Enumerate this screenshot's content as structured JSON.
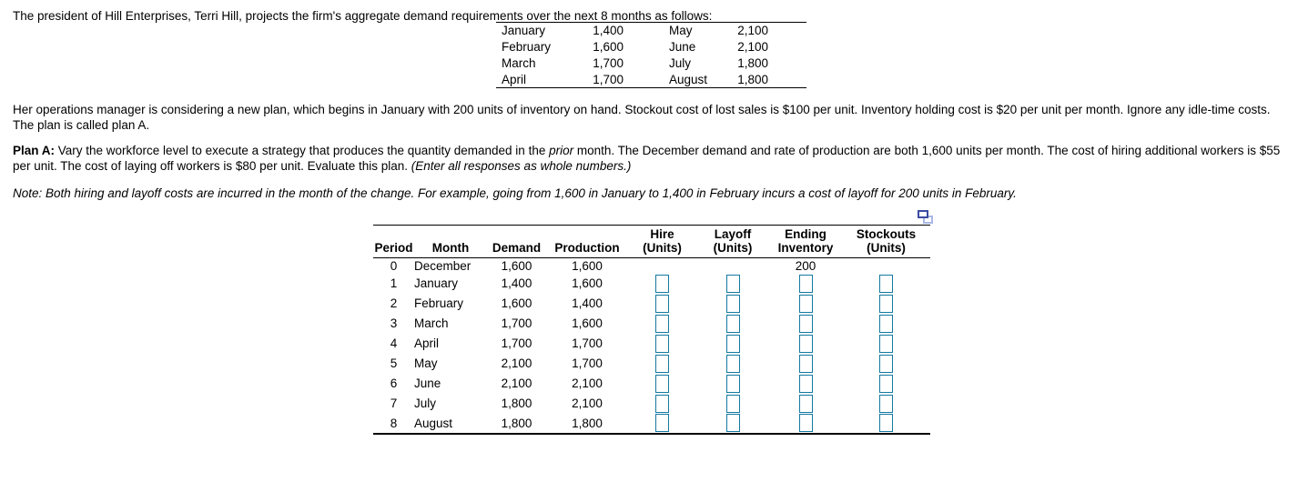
{
  "intro": {
    "text": "The president of Hill Enterprises, Terri Hill, projects the firm's aggregate demand requirements over the next 8 months as follows:"
  },
  "demand_table": {
    "rows": [
      {
        "m1": "January",
        "v1": "1,400",
        "m2": "May",
        "v2": "2,100"
      },
      {
        "m1": "February",
        "v1": "1,600",
        "m2": "June",
        "v2": "2,100"
      },
      {
        "m1": "March",
        "v1": "1,700",
        "m2": "July",
        "v2": "1,800"
      },
      {
        "m1": "April",
        "v1": "1,700",
        "m2": "August",
        "v2": "1,800"
      }
    ]
  },
  "scenario": {
    "text": "Her operations manager is considering a new plan, which begins in January with 200 units of inventory on hand. Stockout cost of lost sales is $100 per unit. Inventory holding cost is $20 per unit per month. Ignore any idle-time costs. The plan is called plan A."
  },
  "plan_a": {
    "label": "Plan A:",
    "before_prior": " Vary the workforce level to execute a strategy that produces the quantity demanded in the ",
    "prior_word": "prior",
    "after_prior": " month. The December demand and rate of production are both 1,600 units per month. The cost of hiring additional workers is $55 per unit. The cost of laying off workers is $80 per unit. Evaluate this plan. ",
    "enter_note": "(Enter all responses as whole numbers.)"
  },
  "note": {
    "text": "Note: Both hiring and layoff costs are incurred in the month of the change. For example, going from 1,600 in January to 1,400 in February incurs a cost of layoff for 200 units in February."
  },
  "icons": {
    "popout": "open-table-in-new-window-icon"
  },
  "colors": {
    "input_border": "#1479a0",
    "icon_dark": "#3b4ba3",
    "icon_light": "#aab7e6"
  },
  "main_table": {
    "headers": [
      {
        "top": "",
        "bottom": "Period"
      },
      {
        "top": "",
        "bottom": "Month"
      },
      {
        "top": "",
        "bottom": "Demand"
      },
      {
        "top": "",
        "bottom": "Production"
      },
      {
        "top": "Hire",
        "bottom": "(Units)"
      },
      {
        "top": "Layoff",
        "bottom": "(Units)"
      },
      {
        "top": "Ending",
        "bottom": "Inventory"
      },
      {
        "top": "Stockouts",
        "bottom": "(Units)"
      }
    ],
    "rows": [
      {
        "period": "0",
        "month": "December",
        "demand": "1,600",
        "production": "1,600",
        "hire": null,
        "layoff": null,
        "ending_inventory": "200",
        "stockouts": null,
        "editable": false
      },
      {
        "period": "1",
        "month": "January",
        "demand": "1,400",
        "production": "1,600",
        "hire": "",
        "layoff": "",
        "ending_inventory": "",
        "stockouts": "",
        "editable": true
      },
      {
        "period": "2",
        "month": "February",
        "demand": "1,600",
        "production": "1,400",
        "hire": "",
        "layoff": "",
        "ending_inventory": "",
        "stockouts": "",
        "editable": true
      },
      {
        "period": "3",
        "month": "March",
        "demand": "1,700",
        "production": "1,600",
        "hire": "",
        "layoff": "",
        "ending_inventory": "",
        "stockouts": "",
        "editable": true
      },
      {
        "period": "4",
        "month": "April",
        "demand": "1,700",
        "production": "1,700",
        "hire": "",
        "layoff": "",
        "ending_inventory": "",
        "stockouts": "",
        "editable": true
      },
      {
        "period": "5",
        "month": "May",
        "demand": "2,100",
        "production": "1,700",
        "hire": "",
        "layoff": "",
        "ending_inventory": "",
        "stockouts": "",
        "editable": true
      },
      {
        "period": "6",
        "month": "June",
        "demand": "2,100",
        "production": "2,100",
        "hire": "",
        "layoff": "",
        "ending_inventory": "",
        "stockouts": "",
        "editable": true
      },
      {
        "period": "7",
        "month": "July",
        "demand": "1,800",
        "production": "2,100",
        "hire": "",
        "layoff": "",
        "ending_inventory": "",
        "stockouts": "",
        "editable": true
      },
      {
        "period": "8",
        "month": "August",
        "demand": "1,800",
        "production": "1,800",
        "hire": "",
        "layoff": "",
        "ending_inventory": "",
        "stockouts": "",
        "editable": true
      }
    ]
  }
}
